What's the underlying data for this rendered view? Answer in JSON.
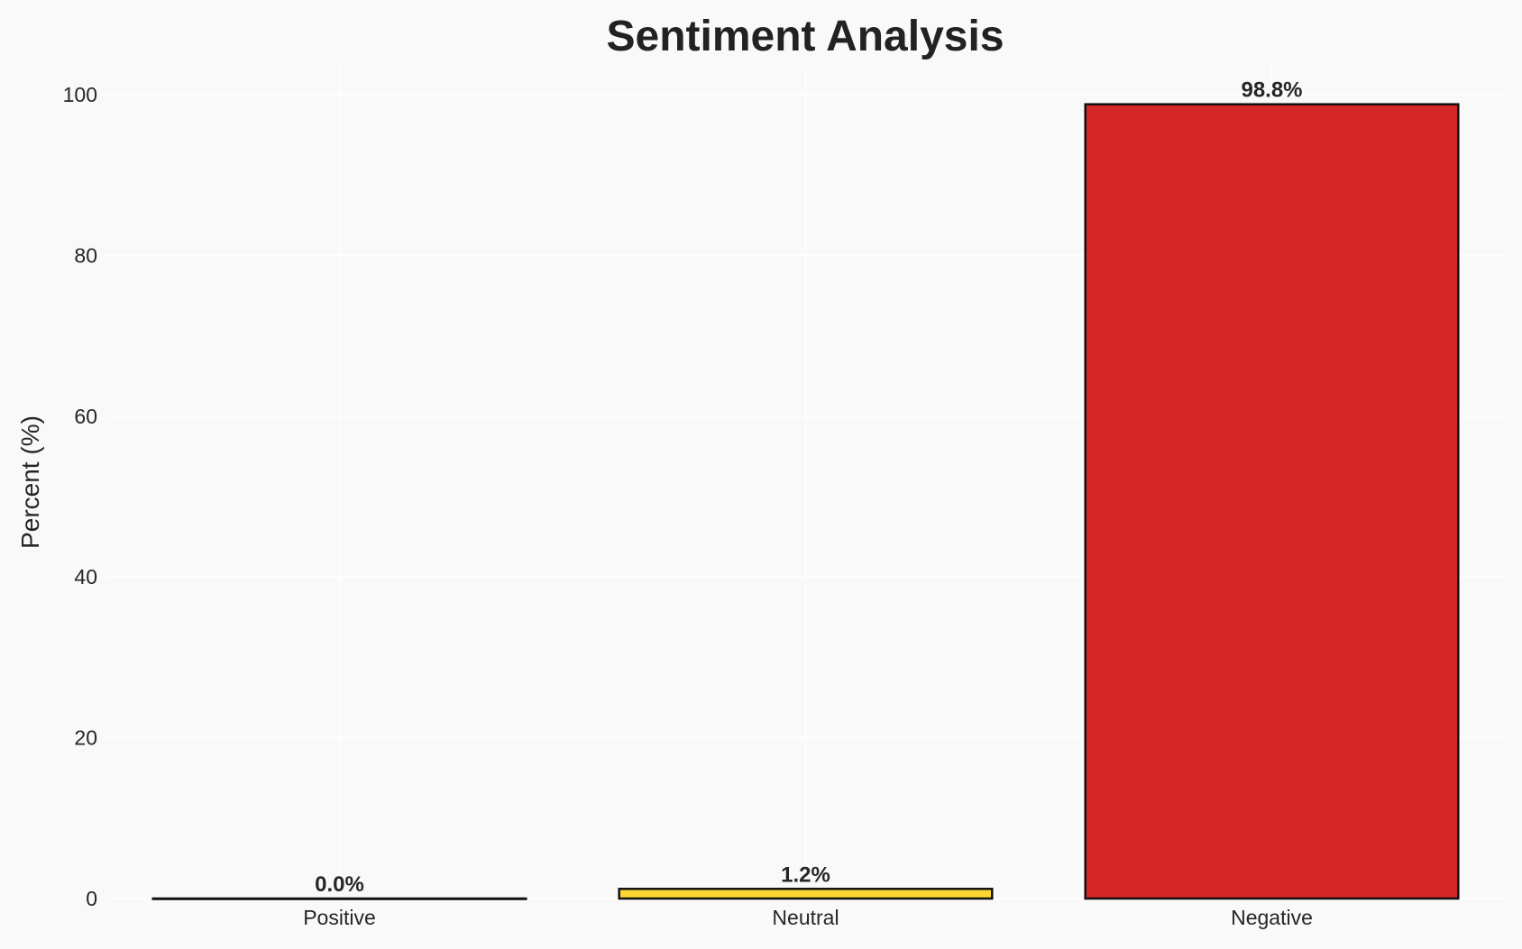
{
  "chart_data": {
    "type": "bar",
    "title": "Sentiment Analysis",
    "xlabel": "",
    "ylabel": "Percent (%)",
    "categories": [
      "Positive",
      "Neutral",
      "Negative"
    ],
    "values": [
      0.0,
      1.2,
      98.8
    ],
    "data_labels": [
      "0.0%",
      "1.2%",
      "98.8%"
    ],
    "colors": [
      "#2ca02c",
      "#fdd835",
      "#d62728"
    ],
    "edge_color": "#111111",
    "ylim": [
      0,
      104
    ],
    "yticks": [
      0,
      20,
      40,
      60,
      80,
      100
    ],
    "grid": true,
    "background": "#f9f9f9"
  }
}
